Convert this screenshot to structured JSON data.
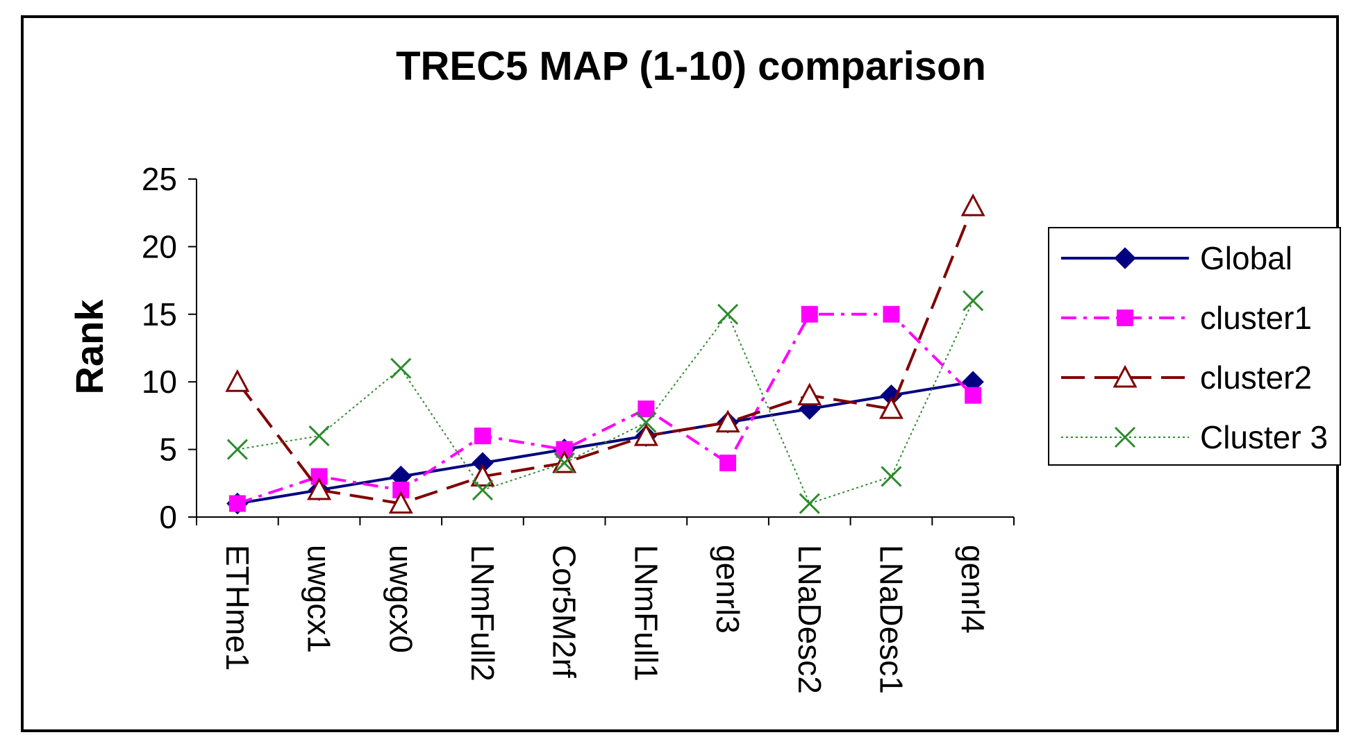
{
  "chart_data": {
    "type": "line",
    "title": "TREC5 MAP (1-10) comparison",
    "xlabel": "",
    "ylabel": "Rank",
    "ylim": [
      0,
      25
    ],
    "yticks": [
      0,
      5,
      10,
      15,
      20,
      25
    ],
    "categories": [
      "ETHme1",
      "uwgcx1",
      "uwgcx0",
      "LNmFull2",
      "Cor5M2rf",
      "LNmFull1",
      "genrl3",
      "LNaDesc2",
      "LNaDesc1",
      "genrl4"
    ],
    "legend_position": "right",
    "series": [
      {
        "name": "Global",
        "values": [
          1,
          2,
          3,
          4,
          5,
          6,
          7,
          8,
          9,
          10
        ],
        "color": "#000080",
        "dash": "",
        "marker": "diamond"
      },
      {
        "name": "cluster1",
        "values": [
          1,
          3,
          2,
          6,
          5,
          8,
          4,
          15,
          15,
          9
        ],
        "color": "#ff00ff",
        "dash": "22,10,5,10",
        "marker": "square"
      },
      {
        "name": "cluster2",
        "values": [
          10,
          2,
          1,
          3,
          4,
          6,
          7,
          9,
          8,
          23
        ],
        "color": "#800000",
        "dash": "34,14",
        "marker": "triangle"
      },
      {
        "name": "Cluster 3",
        "values": [
          5,
          6,
          11,
          2,
          4,
          7,
          15,
          1,
          3,
          16
        ],
        "color": "#2e8b2e",
        "dash": "3,4",
        "marker": "x"
      }
    ]
  }
}
